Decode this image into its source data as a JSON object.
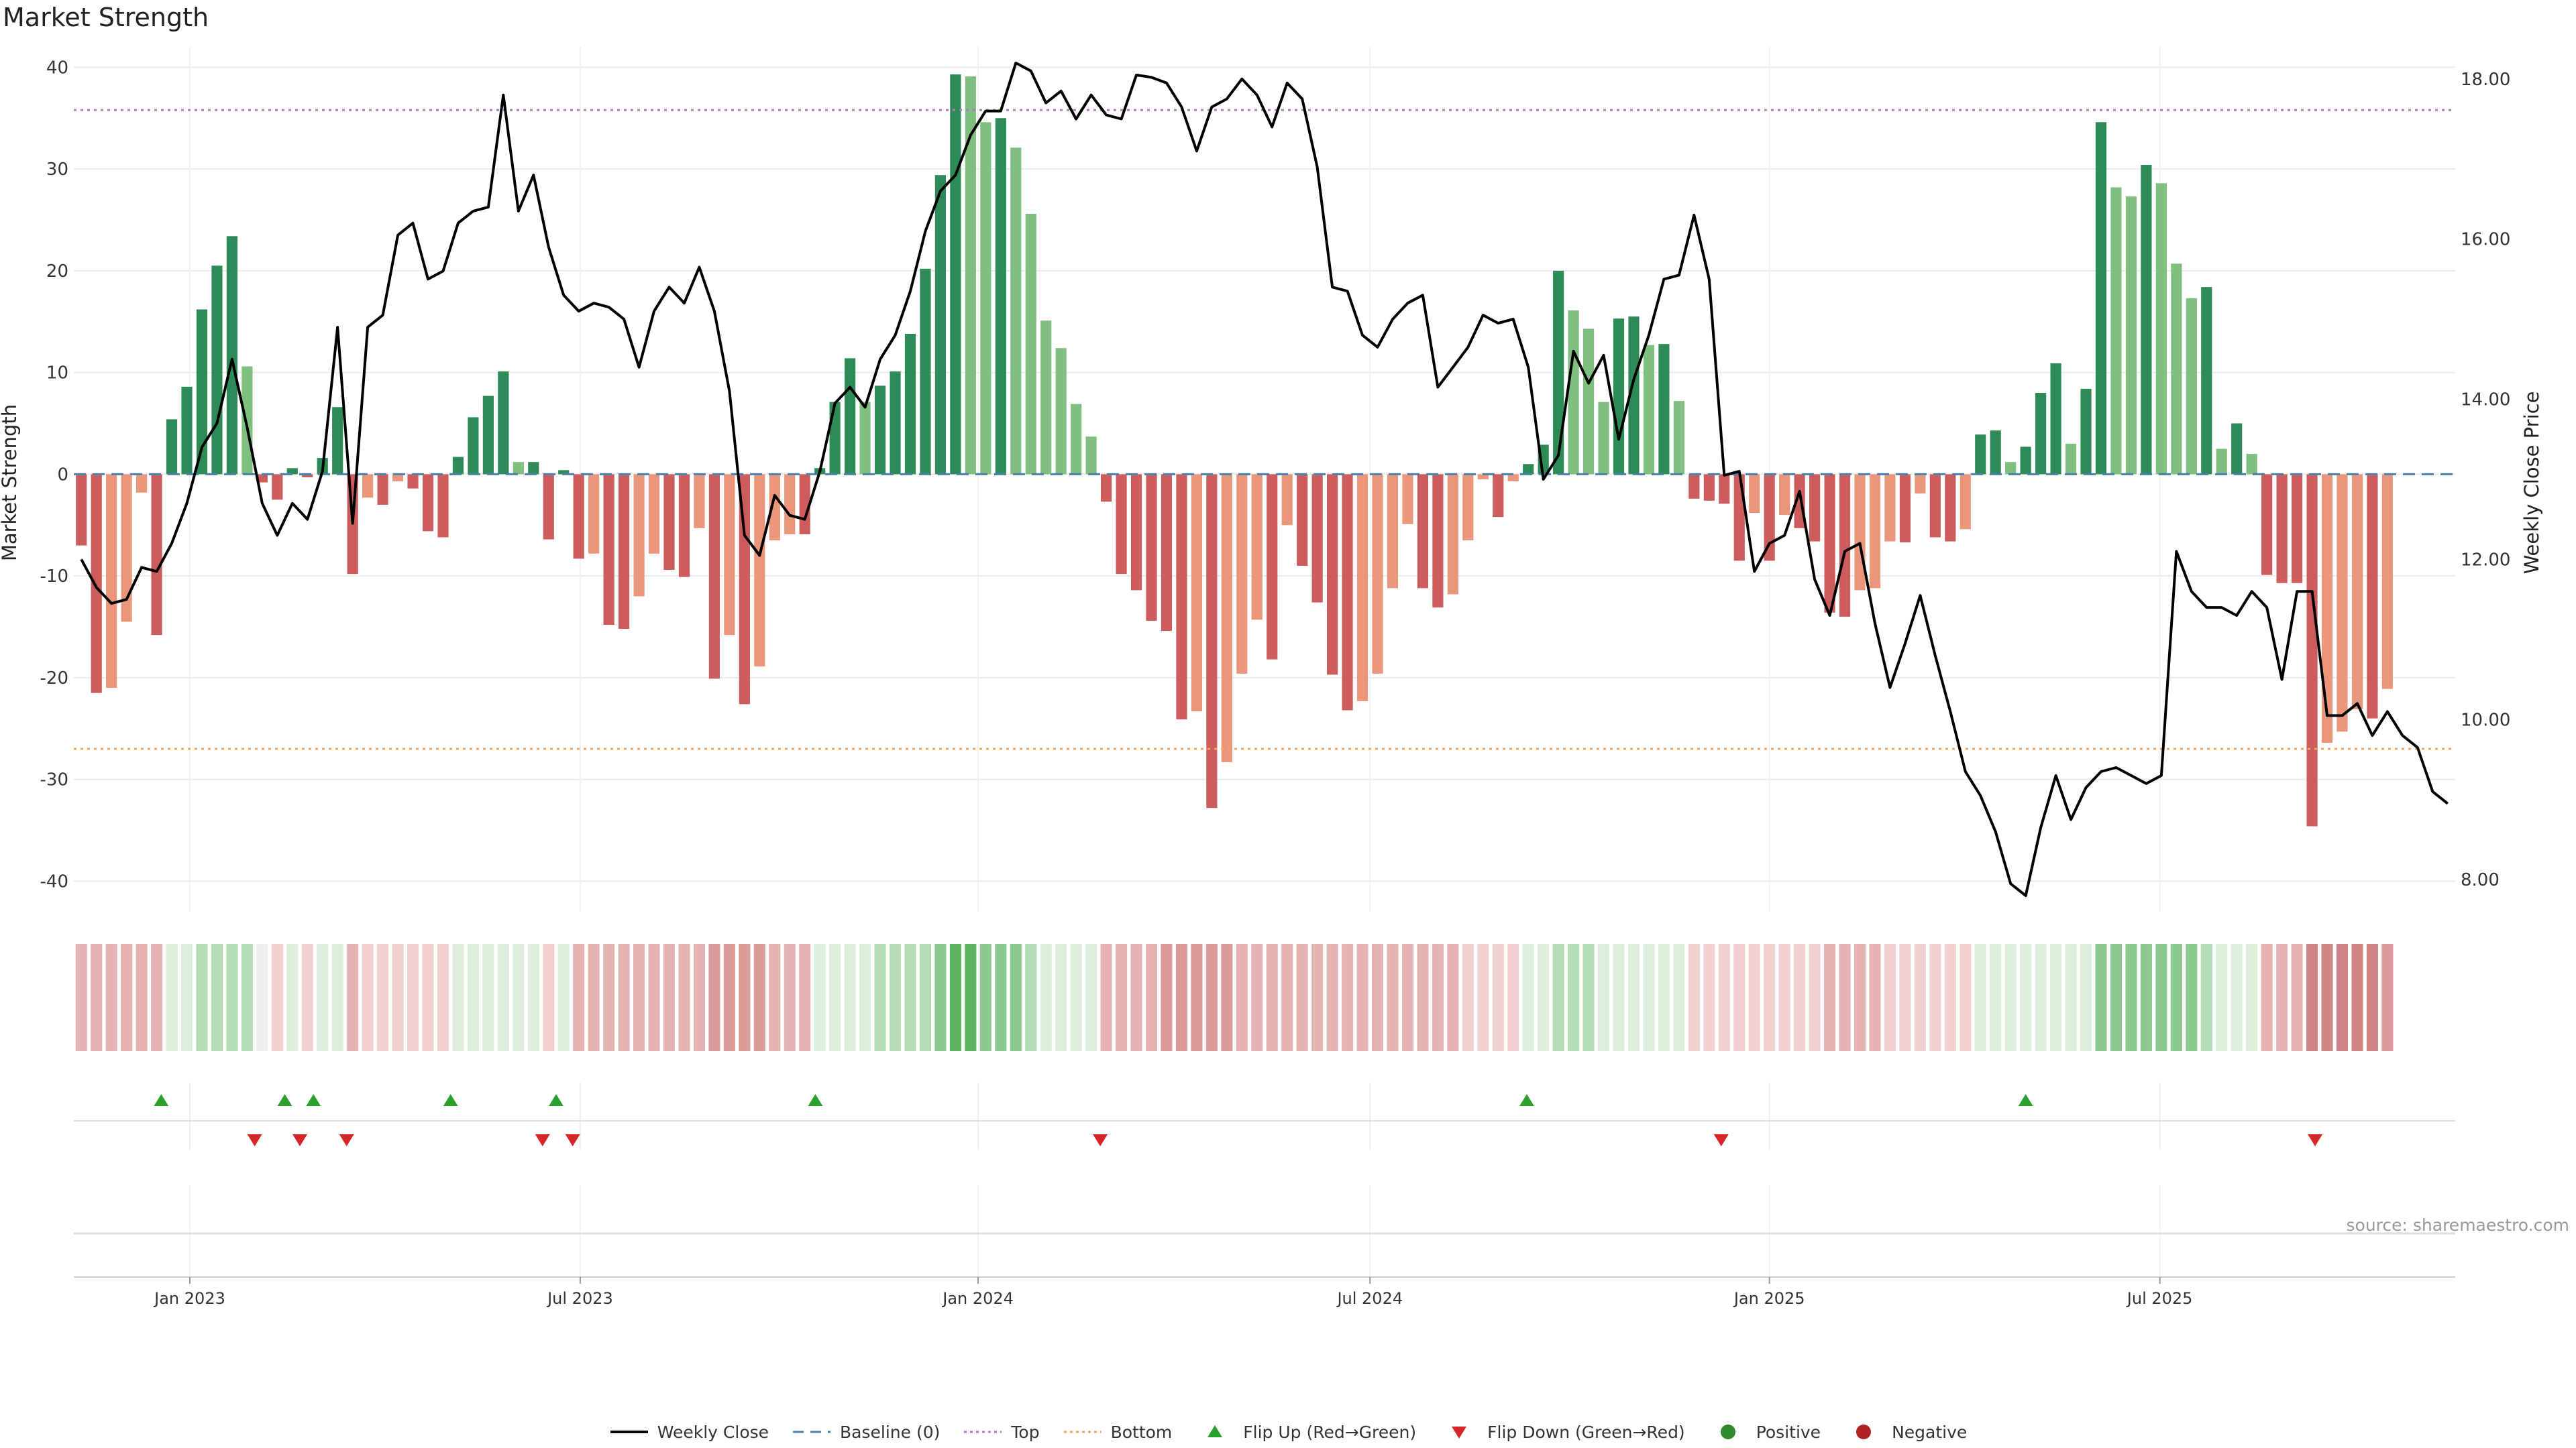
{
  "page": {
    "title": "Market Strength",
    "source": "source: sharemaestro.com"
  },
  "colors": {
    "strong_green": "#2e8b57",
    "light_green": "#7fbf7f",
    "strong_red": "#cd5c5c",
    "light_red": "#e9967a",
    "close_line": "#000000",
    "top_line": "#b07ac0",
    "bottom_line": "#f0a860",
    "baseline": "#4a7fb0",
    "flip_up": "#2ca02c",
    "flip_down": "#d62728",
    "positive_dot": "#2e8b2e",
    "negative_dot": "#b22222"
  },
  "chart_data": {
    "type": "bar",
    "title": "Market Strength",
    "ylabel": "Market Strength",
    "y2label": "Weekly Close Price",
    "ylim": [
      -43,
      42
    ],
    "y2lim": [
      7.6,
      18.4
    ],
    "yticks": [
      -40,
      -30,
      -20,
      -10,
      0,
      10,
      20,
      30,
      40
    ],
    "y2ticks": [
      "8.00",
      "10.00",
      "12.00",
      "14.00",
      "16.00",
      "18.00"
    ],
    "x_tick_labels": [
      "Jan 2023",
      "Jul 2023",
      "Jan 2024",
      "Jul 2024",
      "Jan 2025",
      "Jul 2025"
    ],
    "x_tick_weeks": [
      7.7,
      33.6,
      60,
      86,
      112.5,
      138.4
    ],
    "n_weeks": 158,
    "top_level": 35.8,
    "bottom_level": -27,
    "strength": [
      -7,
      -21.5,
      -21,
      -14.5,
      -1.8,
      -15.8,
      5.4,
      8.6,
      16.2,
      20.5,
      23.4,
      10.6,
      -0.8,
      -2.5,
      0.6,
      -0.3,
      1.6,
      6.6,
      -9.8,
      -2.3,
      -3,
      -0.7,
      -1.4,
      -5.6,
      -6.2,
      1.7,
      5.6,
      7.7,
      10.1,
      1.2,
      1.2,
      -6.4,
      0.4,
      -8.3,
      -7.8,
      -14.8,
      -15.2,
      -12,
      -7.8,
      -9.4,
      -10.1,
      -5.3,
      -20.1,
      -15.8,
      -22.6,
      -18.9,
      -6.5,
      -5.9,
      -5.9,
      0.6,
      7.1,
      11.4,
      7.1,
      8.7,
      10.1,
      13.8,
      20.2,
      29.4,
      39.3,
      39.1,
      34.6,
      35,
      32.1,
      25.6,
      15.1,
      12.4,
      6.9,
      3.7,
      -2.7,
      -9.8,
      -11.4,
      -14.4,
      -15.4,
      -24.1,
      -23.3,
      -32.8,
      -28.3,
      -19.6,
      -14.3,
      -18.2,
      -5,
      -9,
      -12.6,
      -19.7,
      -23.2,
      -22.3,
      -19.6,
      -11.2,
      -4.9,
      -11.2,
      -13.1,
      -11.8,
      -6.5,
      -0.5,
      -4.2,
      -0.7,
      1,
      2.9,
      20,
      16.1,
      14.3,
      7.1,
      15.3,
      15.5,
      12.7,
      12.8,
      7.2,
      -2.4,
      -2.6,
      -2.9,
      -8.5,
      -3.8,
      -8.5,
      -4,
      -5.3,
      -6.6,
      -13.6,
      -14,
      -11.4,
      -11.2,
      -6.6,
      -6.7,
      -1.9,
      -6.2,
      -6.6,
      -5.4,
      3.9,
      4.3,
      1.2,
      2.7,
      8,
      10.9,
      3,
      8.4,
      34.6,
      28.2,
      27.3,
      30.4,
      28.6,
      20.7,
      17.3,
      18.4,
      2.5,
      5,
      2,
      -9.9,
      -10.7,
      -10.7,
      -34.6,
      -26.4,
      -25.3,
      -23.1,
      -24,
      -21.1
    ],
    "close": [
      12,
      11.65,
      11.45,
      11.5,
      11.9,
      11.85,
      12.2,
      12.7,
      13.4,
      13.7,
      14.5,
      13.65,
      12.7,
      12.3,
      12.7,
      12.5,
      13.1,
      14.9,
      12.45,
      14.9,
      15.05,
      16.05,
      16.2,
      15.5,
      15.6,
      16.2,
      16.35,
      16.4,
      17.8,
      16.35,
      16.8,
      15.9,
      15.3,
      15.1,
      15.2,
      15.15,
      15,
      14.4,
      15.1,
      15.4,
      15.2,
      15.65,
      15.1,
      14.1,
      12.3,
      12.05,
      12.8,
      12.55,
      12.5,
      13.1,
      13.95,
      14.15,
      13.9,
      14.5,
      14.8,
      15.35,
      16.1,
      16.6,
      16.8,
      17.3,
      17.6,
      17.6,
      18.2,
      18.1,
      17.7,
      17.85,
      17.5,
      17.8,
      17.55,
      17.5,
      18.05,
      18.02,
      17.95,
      17.65,
      17.1,
      17.65,
      17.75,
      18,
      17.8,
      17.4,
      17.95,
      17.75,
      16.9,
      15.4,
      15.35,
      14.8,
      14.65,
      15,
      15.2,
      15.3,
      14.15,
      14.4,
      14.65,
      15.05,
      14.95,
      15,
      14.4,
      13,
      13.3,
      14.6,
      14.2,
      14.55,
      13.5,
      14.25,
      14.8,
      15.5,
      15.55,
      16.3,
      15.5,
      13.05,
      13.1,
      11.85,
      12.2,
      12.3,
      12.85,
      11.75,
      11.3,
      12.1,
      12.2,
      11.2,
      10.4,
      10.95,
      11.55,
      10.8,
      10.1,
      9.35,
      9.05,
      8.6,
      7.95,
      7.8,
      8.65,
      9.3,
      8.75,
      9.15,
      9.35,
      9.4,
      9.3,
      9.2,
      9.3,
      12.1,
      11.6,
      11.4,
      11.4,
      11.3,
      11.6,
      11.4,
      10.5,
      11.6,
      11.6,
      10.05,
      10.05,
      10.2,
      9.8,
      10.1,
      9.8,
      9.65,
      9.1,
      8.95
    ],
    "heat": [
      -2,
      -2,
      -2,
      -2,
      -2,
      -2,
      1,
      1,
      2,
      2,
      2,
      2,
      0,
      -1,
      1,
      -1,
      1,
      1,
      -2,
      -1,
      -1,
      -1,
      -1,
      -1,
      -1,
      1,
      1,
      1,
      1,
      1,
      1,
      -1,
      1,
      -2,
      -2,
      -2,
      -2,
      -2,
      -2,
      -2,
      -2,
      -2,
      -3,
      -3,
      -3,
      -3,
      -2,
      -2,
      -2,
      1,
      1,
      1,
      1,
      2,
      2,
      2,
      2,
      3,
      4,
      4,
      3,
      3,
      3,
      2,
      1,
      1,
      1,
      1,
      -2,
      -2,
      -2,
      -2,
      -3,
      -3,
      -3,
      -3,
      -3,
      -2,
      -2,
      -2,
      -2,
      -2,
      -2,
      -2,
      -2,
      -2,
      -2,
      -2,
      -2,
      -2,
      -2,
      -2,
      -1,
      -1,
      -1,
      -1,
      1,
      1,
      2,
      2,
      2,
      1,
      1,
      1,
      1,
      1,
      1,
      -1,
      -1,
      -1,
      -1,
      -1,
      -1,
      -1,
      -1,
      -1,
      -2,
      -2,
      -2,
      -2,
      -1,
      -1,
      -1,
      -1,
      -1,
      -1,
      1,
      1,
      1,
      1,
      1,
      1,
      1,
      1,
      3,
      3,
      3,
      3,
      3,
      3,
      3,
      2,
      1,
      1,
      1,
      -2,
      -2,
      -2,
      -4,
      -4,
      -4,
      -4,
      -4,
      -3
    ],
    "flip_up_weeks": [
      5.8,
      14,
      15.9,
      25,
      32,
      49.2,
      96.4,
      129.5
    ],
    "flip_down_weeks": [
      12,
      15,
      18.1,
      31.1,
      33.1,
      68.1,
      109.3,
      148.7
    ]
  },
  "legend": {
    "items": [
      {
        "key": "close",
        "label": "Weekly Close"
      },
      {
        "key": "baseline",
        "label": "Baseline (0)"
      },
      {
        "key": "top",
        "label": "Top"
      },
      {
        "key": "bottom",
        "label": "Bottom"
      },
      {
        "key": "flip_up",
        "label": "Flip Up (Red→Green)"
      },
      {
        "key": "flip_down",
        "label": "Flip Down (Green→Red)"
      },
      {
        "key": "positive",
        "label": "Positive"
      },
      {
        "key": "negative",
        "label": "Negative"
      }
    ]
  }
}
